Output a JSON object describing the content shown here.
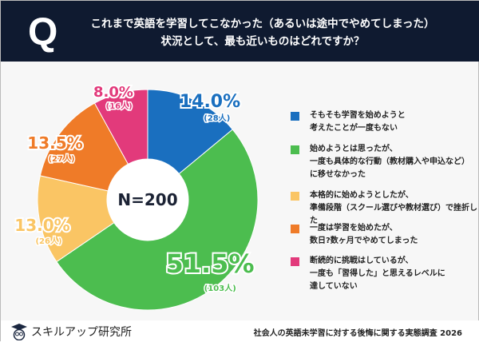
{
  "header": {
    "q_mark": "Q",
    "question": "これまで英語を学習してこなかった（あるいは途中でやめてしまった）\n状況として、最も近いものはどれですか？"
  },
  "chart_data": {
    "type": "pie",
    "donut": true,
    "center_label": "N=200",
    "categories": [
      "そもそも学習を始めようと考えたことが一度もない",
      "始めようとは思ったが、一度も具体的な行動（教材購入や申込など）に移せなかった",
      "本格的に始めようとしたが、準備段階（スクール選びや教材選び）で挫折した",
      "一度は学習を始めたが、数日?数ヶ月でやめてしまった",
      "断続的に挑戦はしているが、一度も「習得した」と思えるレベルに達していない"
    ],
    "values": [
      14.0,
      51.5,
      13.0,
      13.5,
      8.0
    ],
    "value_labels": [
      "14.0%",
      "51.5%",
      "13.0%",
      "13.5%",
      "8.0%"
    ],
    "counts": [
      "(28人)",
      "(103人)",
      "(26人)",
      "(27人)",
      "(16人)"
    ],
    "colors": [
      "#1a6fbf",
      "#4cbd4f",
      "#fac564",
      "#ef7b28",
      "#e23a7b"
    ],
    "legend_placement": "right"
  },
  "legend": [
    {
      "text": "そもそも学習を始めようと\n考えたことが一度もない"
    },
    {
      "text": "始めようとは思ったが、\n一度も具体的な行動（教材購入や申込など）\nに移せなかった"
    },
    {
      "text": "本格的に始めようとしたが、\n準備段階（スクール選びや教材選び）で挫折した"
    },
    {
      "text": "一度は学習を始めたが、\n数日?数ヶ月でやめてしまった"
    },
    {
      "text": "断続的に挑戦はしているが、\n一度も「習得した」と思えるレベルに\n達していない"
    }
  ],
  "footer": {
    "brand": "スキルアップ研究所",
    "logo_icon": "owl-graduation-cap-icon",
    "source": "社会人の英語未学習に対する後悔に関する実態調査 2026"
  }
}
